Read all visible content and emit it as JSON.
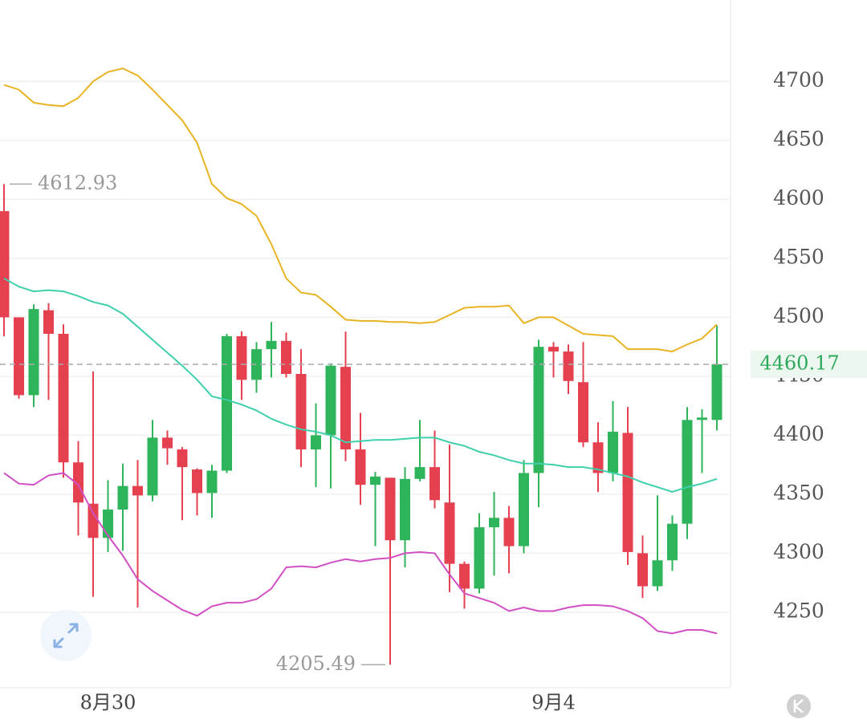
{
  "chart_data": {
    "type": "candlestick",
    "categories": [
      null,
      null,
      null,
      null,
      null,
      null,
      null,
      "8月30",
      null,
      null,
      null,
      null,
      null,
      null,
      null,
      null,
      null,
      null,
      null,
      null,
      null,
      null,
      null,
      null,
      null,
      null,
      null,
      null,
      null,
      null,
      null,
      null,
      null,
      null,
      null,
      null,
      null,
      "9月4",
      null,
      null,
      null,
      null,
      null,
      null,
      null,
      null,
      null,
      null,
      null
    ],
    "open": [
      4590,
      4500,
      4434,
      4506,
      4486,
      4377,
      4342,
      4313,
      4337,
      4357,
      4349,
      4398,
      4388,
      4371,
      4351,
      4370,
      4484,
      4447,
      4473,
      4480,
      4452,
      4388,
      4400,
      4458,
      4388,
      4358,
      4364,
      4311,
      4363,
      4373,
      4343,
      4291,
      4270,
      4322,
      4330,
      4306,
      4368,
      4475,
      4471,
      4445,
      4394,
      4368,
      4402,
      4300,
      4272,
      4294,
      4325,
      4413,
      4413
    ],
    "high": [
      4612.93,
      4500,
      4511,
      4512,
      4494,
      4395,
      4454,
      4362,
      4376,
      4379,
      4413,
      4404,
      4390,
      4372,
      4375,
      4486,
      4488,
      4479,
      4496,
      4487,
      4473,
      4427,
      4461,
      4488,
      4419,
      4369,
      4364,
      4373,
      4413,
      4404,
      4392,
      4293,
      4334,
      4352,
      4340,
      4379,
      4481,
      4479,
      4477,
      4479,
      4411,
      4429,
      4424,
      4315,
      4349,
      4332,
      4424,
      4422,
      4493
    ],
    "low": [
      4484,
      4431,
      4424,
      4430,
      4364,
      4315,
      4263,
      4301,
      4302,
      4254,
      4344,
      4375,
      4328,
      4332,
      4330,
      4368,
      4430,
      4436,
      4449,
      4449,
      4373,
      4356,
      4355,
      4378,
      4341,
      4306,
      4205.49,
      4288,
      4361,
      4338,
      4267,
      4253,
      4266,
      4281,
      4283,
      4300,
      4339,
      4449,
      4435,
      4390,
      4352,
      4361,
      4290,
      4262,
      4268,
      4285,
      4312,
      4368,
      4404
    ],
    "close": [
      4500,
      4434,
      4507,
      4486,
      4377,
      4343,
      4313,
      4337,
      4357,
      4349,
      4398,
      4389,
      4373,
      4351,
      4370,
      4484,
      4447,
      4473,
      4480,
      4452,
      4388,
      4400,
      4459,
      4388,
      4358,
      4365,
      4311,
      4363,
      4373,
      4345,
      4291,
      4270,
      4322,
      4330,
      4306,
      4368,
      4475,
      4471,
      4446,
      4394,
      4368,
      4403,
      4301,
      4272,
      4294,
      4325,
      4413,
      4415,
      4460.17
    ],
    "up_color": "#2eb45a",
    "down_color": "#e5404f",
    "bands": {
      "upper": {
        "color": "#e8b424",
        "values": [
          4697,
          4693,
          4682,
          4680,
          4679,
          4686,
          4700,
          4708,
          4711,
          4705,
          4693,
          4680,
          4667,
          4648,
          4613,
          4601,
          4596,
          4586,
          4562,
          4533,
          4521,
          4519,
          4509,
          4498,
          4497,
          4497,
          4496,
          4496,
          4495,
          4496,
          4502,
          4508,
          4509,
          4509,
          4510,
          4495,
          4500,
          4500,
          4493,
          4486,
          4485,
          4484,
          4473,
          4473,
          4473,
          4471,
          4477,
          4482,
          4494
        ]
      },
      "middle": {
        "color": "#3fcfad",
        "values": [
          4533,
          4526,
          4522,
          4523,
          4522,
          4518,
          4513,
          4510,
          4503,
          4492,
          4481,
          4470,
          4459,
          4447,
          4433,
          4430,
          4426,
          4421,
          4414,
          4409,
          4405,
          4403,
          4400,
          4394,
          4395,
          4396,
          4396,
          4397,
          4398,
          4398,
          4394,
          4391,
          4386,
          4383,
          4379,
          4376,
          4376,
          4375,
          4373,
          4373,
          4371,
          4368,
          4365,
          4360,
          4356,
          4352,
          4356,
          4359,
          4363
        ]
      },
      "lower": {
        "color": "#d24fc4",
        "values": [
          4368,
          4359,
          4358,
          4366,
          4368,
          4358,
          4334,
          4315,
          4298,
          4278,
          4268,
          4260,
          4252,
          4247,
          4255,
          4258,
          4258,
          4261,
          4270,
          4288,
          4289,
          4288,
          4292,
          4295,
          4293,
          4295,
          4296,
          4300,
          4301,
          4300,
          4282,
          4266,
          4262,
          4258,
          4251,
          4254,
          4251,
          4251,
          4254,
          4256,
          4256,
          4255,
          4251,
          4245,
          4234,
          4232,
          4235,
          4235,
          4232
        ]
      }
    },
    "ylim": [
      4186,
      4769
    ],
    "yticks": [
      4250,
      4300,
      4350,
      4400,
      4450,
      4500,
      4550,
      4600,
      4650,
      4700
    ],
    "grid": true
  }
}
